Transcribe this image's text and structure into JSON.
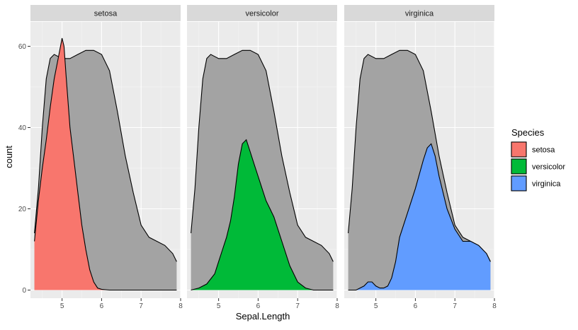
{
  "chart_data": {
    "type": "area",
    "subtype": "stacked density, faceted by species",
    "title": "",
    "xlabel": "Sepal.Length",
    "ylabel": "count",
    "xlim": [
      4.2,
      8.0
    ],
    "ylim": [
      -2,
      66
    ],
    "x_ticks": [
      5,
      6,
      7,
      8
    ],
    "y_ticks": [
      0,
      20,
      40,
      60
    ],
    "grid": true,
    "legend": {
      "title": "Species",
      "position": "right",
      "items": [
        {
          "label": "setosa",
          "color": "#F8766D"
        },
        {
          "label": "versicolor",
          "color": "#00BA38"
        },
        {
          "label": "virginica",
          "color": "#619CFF"
        }
      ]
    },
    "background_series": {
      "color": "#A3A3A3",
      "x": [
        4.3,
        4.4,
        4.5,
        4.6,
        4.7,
        4.8,
        5.0,
        5.2,
        5.4,
        5.6,
        5.8,
        6.0,
        6.2,
        6.4,
        6.6,
        6.8,
        7.0,
        7.2,
        7.4,
        7.6,
        7.8,
        7.9
      ],
      "y": [
        14,
        25,
        40,
        52,
        57,
        58,
        57,
        57,
        58,
        59,
        59,
        58,
        54,
        44,
        33,
        24,
        16,
        13,
        12,
        11,
        9,
        7
      ]
    },
    "facets": [
      {
        "label": "setosa",
        "color": "#F8766D",
        "x": [
          4.3,
          4.4,
          4.5,
          4.6,
          4.7,
          4.8,
          4.9,
          5.0,
          5.05,
          5.1,
          5.2,
          5.3,
          5.4,
          5.5,
          5.6,
          5.7,
          5.8,
          5.9,
          6.0,
          6.2,
          6.4,
          6.6,
          6.8,
          7.0,
          7.2,
          7.4,
          7.6,
          7.8,
          7.9
        ],
        "y": [
          12,
          22,
          30,
          37,
          45,
          52,
          57,
          62,
          60,
          53,
          40,
          32,
          24,
          16,
          10,
          5,
          2,
          0.5,
          0.2,
          0,
          0,
          0,
          0,
          0,
          0,
          0,
          0,
          0,
          0
        ]
      },
      {
        "label": "versicolor",
        "color": "#00BA38",
        "x": [
          4.3,
          4.5,
          4.7,
          4.9,
          5.0,
          5.1,
          5.2,
          5.3,
          5.4,
          5.5,
          5.6,
          5.7,
          5.8,
          5.9,
          6.0,
          6.1,
          6.2,
          6.3,
          6.4,
          6.5,
          6.6,
          6.8,
          7.0,
          7.2,
          7.4,
          7.6,
          7.8,
          7.9
        ],
        "y": [
          0,
          0.5,
          1.5,
          4,
          7,
          10,
          13,
          17,
          23,
          31,
          36,
          37,
          34,
          31,
          28,
          25,
          22,
          20,
          18,
          15,
          12,
          6,
          2,
          0.5,
          0,
          0,
          0,
          0
        ]
      },
      {
        "label": "virginica",
        "color": "#619CFF",
        "x": [
          4.3,
          4.5,
          4.7,
          4.8,
          4.9,
          5.0,
          5.1,
          5.2,
          5.3,
          5.4,
          5.5,
          5.6,
          5.8,
          6.0,
          6.2,
          6.3,
          6.4,
          6.5,
          6.6,
          6.8,
          7.0,
          7.2,
          7.4,
          7.6,
          7.8,
          7.9
        ],
        "y": [
          0,
          0,
          1,
          2,
          2,
          1,
          0.5,
          0.5,
          1,
          3,
          7,
          13,
          19,
          25,
          32,
          35,
          36,
          33,
          28,
          20,
          15,
          12,
          12,
          11,
          9,
          7
        ]
      }
    ]
  }
}
